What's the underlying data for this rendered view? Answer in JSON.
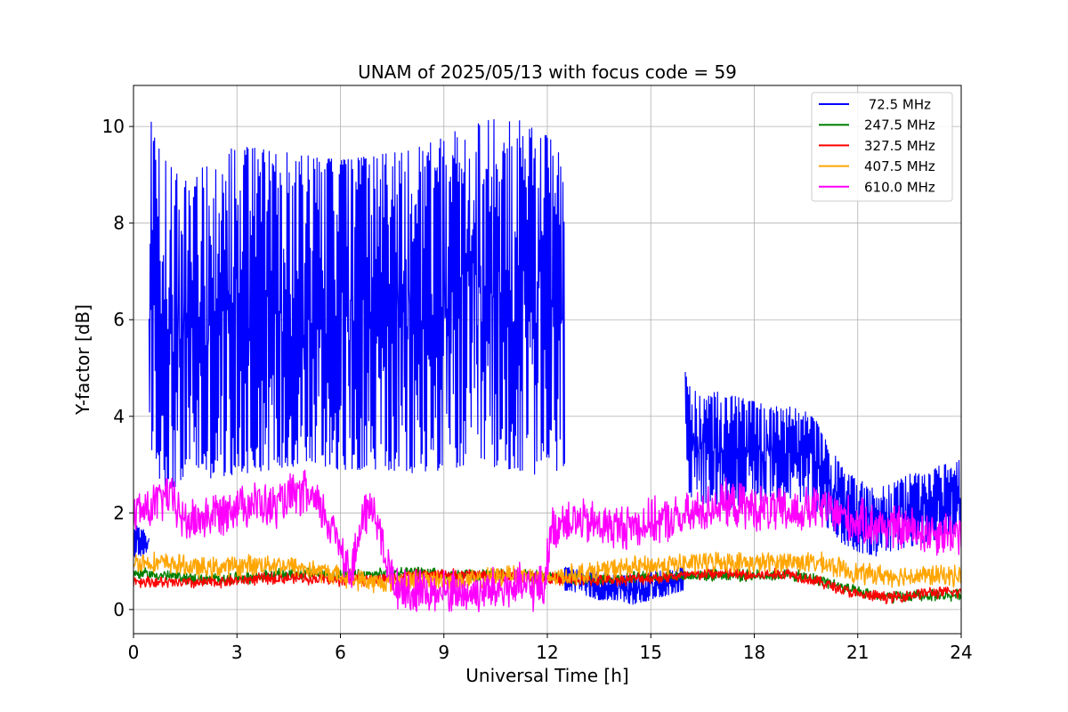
{
  "chart_data": {
    "type": "line",
    "title": "UNAM of 2025/05/13 with focus code = 59",
    "xlabel": "Universal Time [h]",
    "ylabel": "Y-factor [dB]",
    "xlim": [
      0,
      24
    ],
    "ylim": [
      -0.5,
      10.85
    ],
    "xticks": [
      0,
      3,
      6,
      9,
      12,
      15,
      18,
      21,
      24
    ],
    "yticks": [
      0,
      2,
      4,
      6,
      8,
      10
    ],
    "grid": true,
    "legend_position": "top-right",
    "series": [
      {
        "name": " 72.5 MHz",
        "color": "#0000ff",
        "style": "band",
        "segments": [
          {
            "x": [
              0.0,
              0.4,
              0.45
            ],
            "low": [
              1.0,
              1.2,
              1.3
            ],
            "high": [
              1.8,
              1.6,
              1.6
            ]
          },
          {
            "x": [
              0.45,
              0.5,
              0.6,
              1.0,
              1.5,
              1.6,
              1.7,
              1.8,
              2.0,
              3.0,
              4.0,
              5.0,
              6.0,
              7.0,
              8.0,
              9.0,
              10.0,
              11.0,
              11.5,
              12.0,
              12.4,
              12.5
            ],
            "low": [
              4.0,
              3.5,
              2.8,
              2.5,
              2.6,
              2.9,
              3.6,
              2.9,
              2.7,
              2.8,
              2.9,
              3.0,
              2.9,
              2.9,
              2.8,
              2.9,
              3.0,
              2.9,
              2.8,
              2.8,
              2.8,
              3.0
            ],
            "high": [
              8.5,
              10.3,
              9.8,
              9.2,
              9.1,
              8.9,
              8.4,
              9.0,
              9.2,
              9.6,
              9.5,
              9.4,
              9.3,
              9.4,
              9.5,
              9.8,
              10.1,
              10.2,
              10.0,
              9.8,
              9.5,
              8.5
            ]
          },
          {
            "x": [
              12.5,
              13.0,
              13.5,
              14.0,
              14.5,
              15.0,
              15.5,
              15.95
            ],
            "low": [
              0.4,
              0.3,
              0.2,
              0.2,
              0.1,
              0.2,
              0.3,
              0.4
            ],
            "high": [
              0.9,
              0.8,
              0.8,
              0.7,
              0.7,
              0.8,
              0.8,
              0.9
            ]
          },
          {
            "x": [
              16.0,
              16.05,
              16.2,
              16.5,
              17.0,
              17.5,
              18.0,
              18.5,
              19.0,
              19.5,
              19.8,
              20.0,
              20.5,
              21.0,
              21.5,
              22.0,
              22.5,
              23.0,
              23.5,
              24.0
            ],
            "low": [
              2.6,
              2.5,
              2.3,
              2.2,
              2.1,
              2.1,
              2.2,
              2.3,
              2.3,
              2.2,
              2.0,
              1.8,
              1.4,
              1.2,
              1.1,
              1.2,
              1.3,
              1.4,
              1.5,
              1.6
            ],
            "high": [
              5.2,
              4.7,
              4.6,
              4.5,
              4.5,
              4.4,
              4.3,
              4.2,
              4.2,
              4.1,
              3.9,
              3.6,
              3.0,
              2.7,
              2.5,
              2.6,
              2.8,
              2.9,
              3.0,
              3.1
            ]
          }
        ]
      },
      {
        "name": "247.5 MHz",
        "color": "#008000",
        "style": "noisy",
        "x": [
          0,
          1,
          2,
          3,
          4,
          5,
          6,
          7,
          8,
          9,
          10,
          11,
          12,
          13,
          14,
          15,
          16,
          17,
          18,
          19,
          20,
          21,
          22,
          23,
          24
        ],
        "y": [
          0.75,
          0.7,
          0.62,
          0.65,
          0.7,
          0.75,
          0.7,
          0.72,
          0.78,
          0.72,
          0.7,
          0.72,
          0.68,
          0.62,
          0.65,
          0.68,
          0.7,
          0.72,
          0.7,
          0.72,
          0.6,
          0.35,
          0.25,
          0.3,
          0.3
        ],
        "amp": 0.14
      },
      {
        "name": "327.5 MHz",
        "color": "#ff0000",
        "style": "noisy",
        "x": [
          0,
          1,
          2,
          3,
          4,
          5,
          6,
          7,
          8,
          9,
          10,
          11,
          12,
          13,
          14,
          15,
          16,
          17,
          18,
          19,
          20,
          21,
          22,
          23,
          24
        ],
        "y": [
          0.6,
          0.55,
          0.55,
          0.6,
          0.65,
          0.65,
          0.6,
          0.62,
          0.7,
          0.72,
          0.72,
          0.7,
          0.65,
          0.6,
          0.62,
          0.65,
          0.7,
          0.75,
          0.7,
          0.75,
          0.55,
          0.3,
          0.25,
          0.35,
          0.35
        ],
        "amp": 0.14
      },
      {
        "name": "407.5 MHz",
        "color": "#ffa500",
        "style": "noisy",
        "x": [
          0,
          1,
          2,
          3,
          4,
          5,
          6,
          7,
          8,
          9,
          10,
          11,
          12,
          13,
          14,
          15,
          16,
          17,
          18,
          19,
          20,
          21,
          22,
          23,
          24
        ],
        "y": [
          1.0,
          0.95,
          0.85,
          0.9,
          0.95,
          0.85,
          0.7,
          0.55,
          0.6,
          0.6,
          0.6,
          0.75,
          0.65,
          0.75,
          0.85,
          0.9,
          0.95,
          1.0,
          0.95,
          1.0,
          0.95,
          0.75,
          0.7,
          0.7,
          0.7
        ],
        "amp": 0.25
      },
      {
        "name": "610.0 MHz",
        "color": "#ff00ff",
        "style": "noisy",
        "x": [
          0,
          0.5,
          1,
          1.5,
          2,
          2.5,
          3,
          3.5,
          4,
          4.5,
          5,
          5.5,
          6,
          6.3,
          6.7,
          7.0,
          7.3,
          7.6,
          8,
          9,
          10,
          11,
          11.9,
          12.1,
          12.5,
          13,
          14,
          15,
          16,
          17,
          18,
          19,
          20,
          21,
          22,
          23,
          24
        ],
        "y": [
          2.0,
          2.1,
          2.4,
          1.8,
          1.9,
          2.0,
          2.2,
          2.2,
          2.1,
          2.3,
          2.4,
          2.0,
          1.4,
          0.7,
          2.0,
          2.1,
          1.0,
          0.5,
          0.35,
          0.35,
          0.35,
          0.45,
          0.45,
          1.6,
          1.9,
          1.8,
          1.7,
          1.8,
          1.9,
          2.2,
          2.1,
          2.0,
          2.1,
          1.8,
          1.7,
          1.6,
          1.6
        ],
        "amp": 0.55
      }
    ]
  }
}
